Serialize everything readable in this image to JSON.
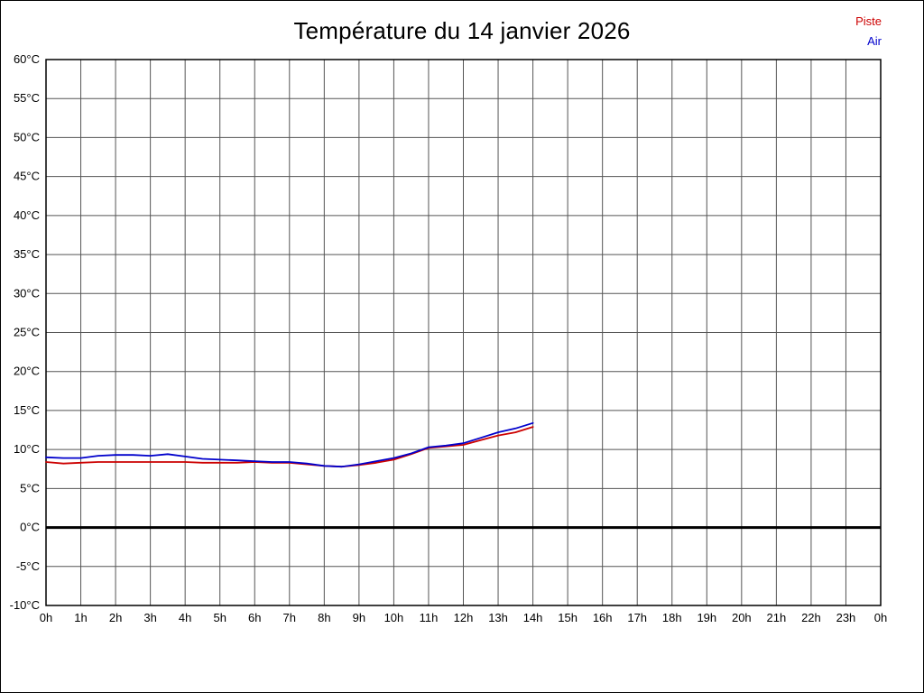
{
  "chart_data": {
    "type": "line",
    "title": "Température du 14 janvier 2026",
    "xlim": [
      0,
      24
    ],
    "ylim": [
      -10,
      60
    ],
    "grid": true,
    "grid_color": "#555555",
    "axis_color": "#000000",
    "zero_line_value": 0,
    "zero_line_color": "#000000",
    "legend_position": "top-right",
    "x_tick_values": [
      0,
      1,
      2,
      3,
      4,
      5,
      6,
      7,
      8,
      9,
      10,
      11,
      12,
      13,
      14,
      15,
      16,
      17,
      18,
      19,
      20,
      21,
      22,
      23,
      24
    ],
    "x_tick_labels": [
      "0h",
      "1h",
      "2h",
      "3h",
      "4h",
      "5h",
      "6h",
      "7h",
      "8h",
      "9h",
      "10h",
      "11h",
      "12h",
      "13h",
      "14h",
      "15h",
      "16h",
      "17h",
      "18h",
      "19h",
      "20h",
      "21h",
      "22h",
      "23h",
      "0h"
    ],
    "y_tick_values": [
      60,
      55,
      50,
      45,
      40,
      35,
      30,
      25,
      20,
      15,
      10,
      5,
      0,
      -5,
      -10
    ],
    "y_tick_labels": [
      "60°C",
      "55°C",
      "50°C",
      "45°C",
      "40°C",
      "35°C",
      "30°C",
      "25°C",
      "20°C",
      "15°C",
      "10°C",
      "5°C",
      "0°C",
      "-5°C",
      "-10°C"
    ],
    "x": [
      0,
      0.5,
      1,
      1.5,
      2,
      2.5,
      3,
      3.5,
      4,
      4.5,
      5,
      5.5,
      6,
      6.5,
      7,
      7.5,
      8,
      8.5,
      9,
      9.5,
      10,
      10.5,
      11,
      11.5,
      12,
      12.5,
      13,
      13.5,
      14
    ],
    "series": [
      {
        "name": "Piste",
        "color": "#cc0000",
        "values": [
          8.4,
          8.2,
          8.3,
          8.4,
          8.4,
          8.4,
          8.4,
          8.4,
          8.4,
          8.3,
          8.3,
          8.3,
          8.4,
          8.3,
          8.3,
          8.1,
          7.9,
          7.8,
          8.0,
          8.3,
          8.7,
          9.4,
          10.2,
          10.4,
          10.6,
          11.2,
          11.8,
          12.2,
          12.9
        ]
      },
      {
        "name": "Air",
        "color": "#0000cc",
        "values": [
          9.0,
          8.9,
          8.9,
          9.2,
          9.3,
          9.3,
          9.2,
          9.4,
          9.1,
          8.8,
          8.7,
          8.6,
          8.5,
          8.4,
          8.4,
          8.2,
          7.9,
          7.8,
          8.1,
          8.5,
          8.9,
          9.5,
          10.3,
          10.5,
          10.8,
          11.5,
          12.2,
          12.7,
          13.4
        ]
      }
    ]
  }
}
